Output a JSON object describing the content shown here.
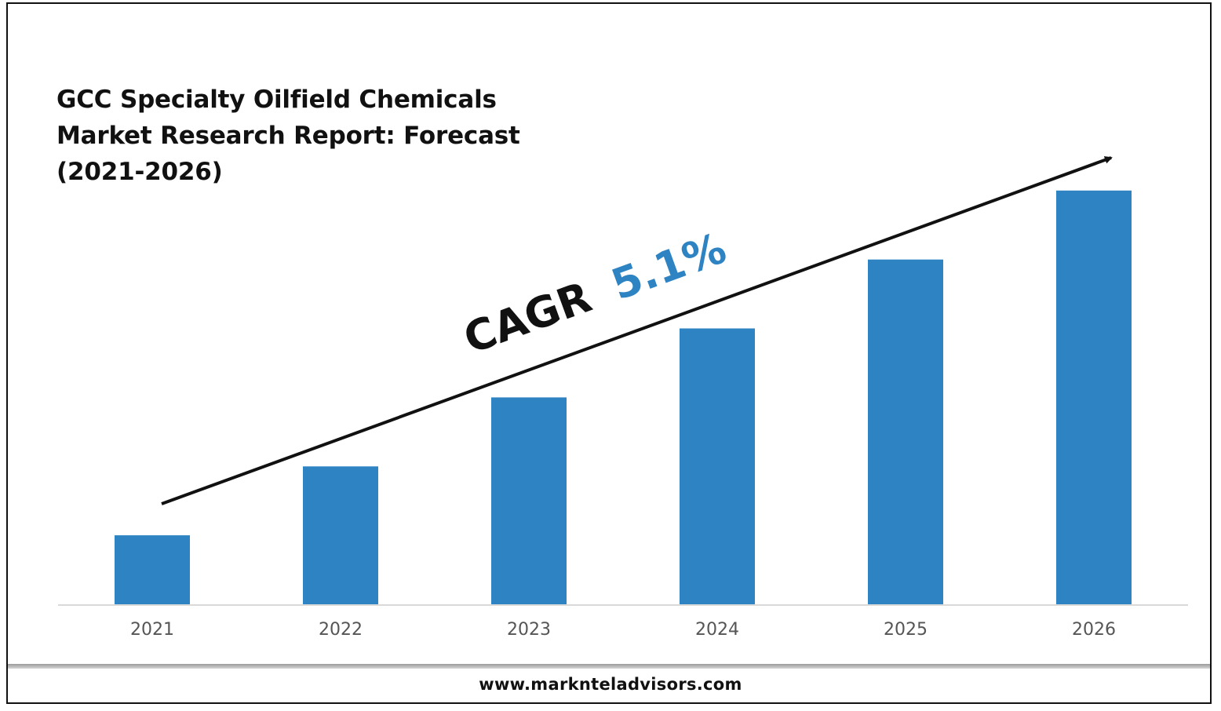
{
  "chart_data": {
    "type": "bar",
    "title_lines": [
      "GCC Specialty Oilfield Chemicals",
      "Market Research Report: Forecast",
      "(2021-2026)"
    ],
    "categories": [
      "2021",
      "2022",
      "2023",
      "2024",
      "2025",
      "2026"
    ],
    "values": [
      1,
      2,
      3,
      4,
      5,
      6
    ],
    "ylim": [
      0,
      6.1
    ],
    "grid": false,
    "legend": "none",
    "bar_color": "#2e83c3",
    "annotation": {
      "prefix": "CAGR",
      "value": "5.1%",
      "prefix_color": "#111111",
      "value_color": "#2e83c3",
      "trend_arrow": "rising, drawn above bars"
    }
  },
  "footer": {
    "url": "www.marknteladvisors.com"
  }
}
